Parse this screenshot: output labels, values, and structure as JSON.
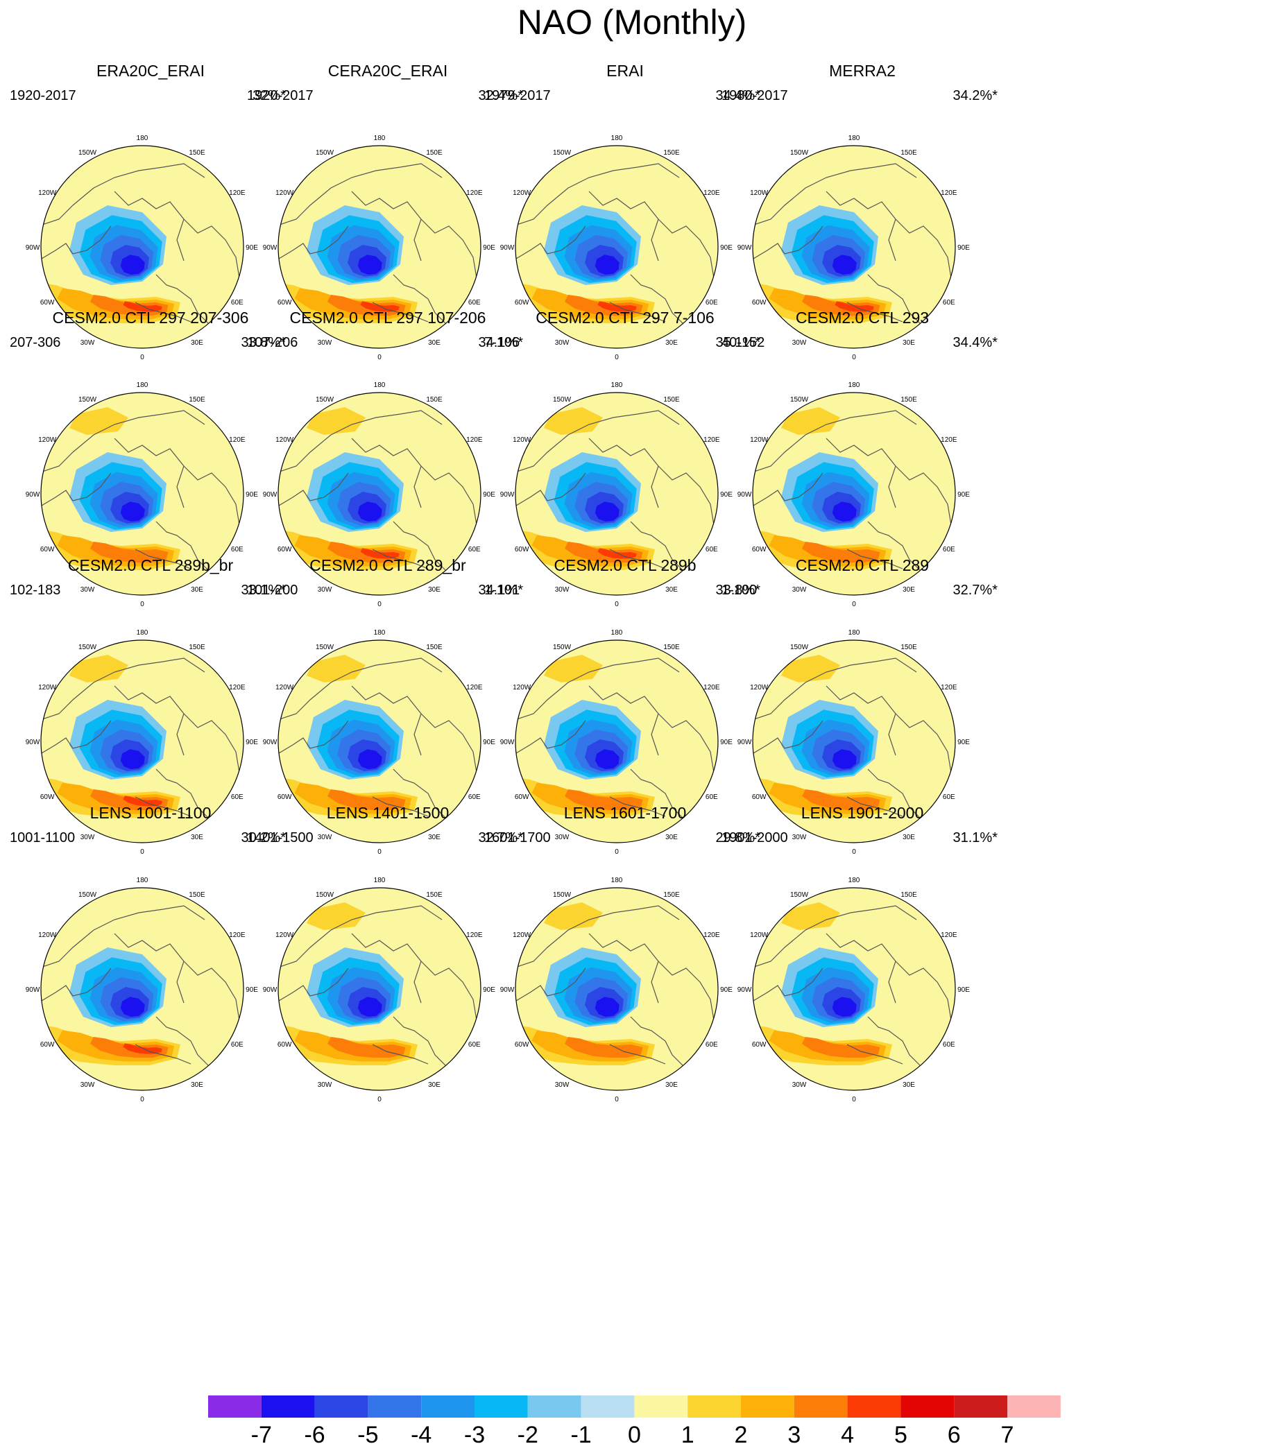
{
  "title": "NAO (Monthly)",
  "colors": {
    "-7": "#8a2be8",
    "-6": "#1a10f0",
    "-5": "#2c46e6",
    "-4": "#3476ea",
    "-3": "#1e96f0",
    "-2": "#08b8f4",
    "-1": "#78c8f0",
    "0": "#b8dff2",
    "1": "#fbf6a0",
    "2": "#fcd430",
    "3": "#fcb008",
    "4": "#fc7e08",
    "5": "#fc3a04",
    "6": "#e40404",
    "7": "#cc1c1c",
    "8": "#fcb4b4",
    "coast": "#555555"
  },
  "lon_labels": [
    "180",
    "150E",
    "120E",
    "90E",
    "60E",
    "30E",
    "0",
    "30W",
    "60W",
    "90W",
    "120W",
    "150W"
  ],
  "panels": [
    {
      "title": "ERA20C_ERAI",
      "range": "1920-2017",
      "pct": "32%*"
    },
    {
      "title": "CERA20C_ERAI",
      "range": "1920-2017",
      "pct": "32.4%*"
    },
    {
      "title": "ERAI",
      "range": "1979-2017",
      "pct": "34.4%*"
    },
    {
      "title": "MERRA2",
      "range": "1980-2017",
      "pct": "34.2%*"
    },
    {
      "title": "CESM2.0 CTL 297 207-306",
      "range": "207-306",
      "pct": "33.8%*"
    },
    {
      "title": "CESM2.0 CTL 297 107-206",
      "range": "107-206",
      "pct": "34.1%*"
    },
    {
      "title": "CESM2.0 CTL 297 7-106",
      "range": "7-106",
      "pct": "35.1%*"
    },
    {
      "title": "CESM2.0 CTL 293",
      "range": "40-152",
      "pct": "34.4%*"
    },
    {
      "title": "CESM2.0 CTL 289b_br",
      "range": "102-183",
      "pct": "33.1%*"
    },
    {
      "title": "CESM2.0 CTL 289_br",
      "range": "101-200",
      "pct": "34.1%*"
    },
    {
      "title": "CESM2.0 CTL 289b",
      "range": "1-101",
      "pct": "33.8%*"
    },
    {
      "title": "CESM2.0 CTL 289",
      "range": "1-100",
      "pct": "32.7%*"
    },
    {
      "title": "LENS 1001-1100",
      "range": "1001-1100",
      "pct": "30.2%*"
    },
    {
      "title": "LENS 1401-1500",
      "range": "1401-1500",
      "pct": "32.7%*"
    },
    {
      "title": "LENS 1601-1700",
      "range": "1601-1700",
      "pct": "29.8%*"
    },
    {
      "title": "LENS 1901-2000",
      "range": "1901-2000",
      "pct": "31.1%*"
    }
  ],
  "chart_data": {
    "type": "heatmap",
    "title": "NAO (Monthly)",
    "projection": "north polar stereographic",
    "colorbar": {
      "ticks": [
        "-7",
        "-6",
        "-5",
        "-4",
        "-3",
        "-2",
        "-1",
        "0",
        "1",
        "2",
        "3",
        "4",
        "5",
        "6",
        "7"
      ],
      "levels": [
        -7,
        -6,
        -5,
        -4,
        -3,
        -2,
        -1,
        0,
        1,
        2,
        3,
        4,
        5,
        6,
        7
      ],
      "n_bins": 16
    },
    "panels": [
      {
        "title": "ERA20C_ERAI",
        "years": "1920-2017",
        "variance_explained": 32.0,
        "min_value": -5.5,
        "max_value": 4.2,
        "north_pacific_high": false
      },
      {
        "title": "CERA20C_ERAI",
        "years": "1920-2017",
        "variance_explained": 32.4,
        "min_value": -5.5,
        "max_value": 4.2,
        "north_pacific_high": false
      },
      {
        "title": "ERAI",
        "years": "1979-2017",
        "variance_explained": 34.4,
        "min_value": -5.5,
        "max_value": 4.2,
        "north_pacific_high": false
      },
      {
        "title": "MERRA2",
        "years": "1980-2017",
        "variance_explained": 34.2,
        "min_value": -5.5,
        "max_value": 4.2,
        "north_pacific_high": false
      },
      {
        "title": "CESM2.0 CTL 297 207-306",
        "years": "207-306",
        "variance_explained": 33.8,
        "min_value": -6.2,
        "max_value": 3.6,
        "north_pacific_high": true
      },
      {
        "title": "CESM2.0 CTL 297 107-206",
        "years": "107-206",
        "variance_explained": 34.1,
        "min_value": -6.2,
        "max_value": 4.1,
        "north_pacific_high": true
      },
      {
        "title": "CESM2.0 CTL 297 7-106",
        "years": "7-106",
        "variance_explained": 35.1,
        "min_value": -6.2,
        "max_value": 4.1,
        "north_pacific_high": true
      },
      {
        "title": "CESM2.0 CTL 293",
        "years": "40-152",
        "variance_explained": 34.4,
        "min_value": -6.2,
        "max_value": 3.6,
        "north_pacific_high": true
      },
      {
        "title": "CESM2.0 CTL 289b_br",
        "years": "102-183",
        "variance_explained": 33.1,
        "min_value": -5.5,
        "max_value": 4.1,
        "north_pacific_high": true
      },
      {
        "title": "CESM2.0 CTL 289_br",
        "years": "101-200",
        "variance_explained": 34.1,
        "min_value": -6.2,
        "max_value": 3.6,
        "north_pacific_high": true
      },
      {
        "title": "CESM2.0 CTL 289b",
        "years": "1-101",
        "variance_explained": 33.8,
        "min_value": -6.2,
        "max_value": 3.6,
        "north_pacific_high": true
      },
      {
        "title": "CESM2.0 CTL 289",
        "years": "1-100",
        "variance_explained": 32.7,
        "min_value": -5.5,
        "max_value": 3.6,
        "north_pacific_high": true
      },
      {
        "title": "LENS 1001-1100",
        "years": "1001-1100",
        "variance_explained": 30.2,
        "min_value": -5.5,
        "max_value": 4.1,
        "north_pacific_high": false
      },
      {
        "title": "LENS 1401-1500",
        "years": "1401-1500",
        "variance_explained": 32.7,
        "min_value": -5.5,
        "max_value": 3.6,
        "north_pacific_high": true
      },
      {
        "title": "LENS 1601-1700",
        "years": "1601-1700",
        "variance_explained": 29.8,
        "min_value": -5.5,
        "max_value": 3.6,
        "north_pacific_high": true
      },
      {
        "title": "LENS 1901-2000",
        "years": "1901-2000",
        "variance_explained": 31.1,
        "min_value": -5.5,
        "max_value": 3.6,
        "north_pacific_high": true
      }
    ]
  }
}
